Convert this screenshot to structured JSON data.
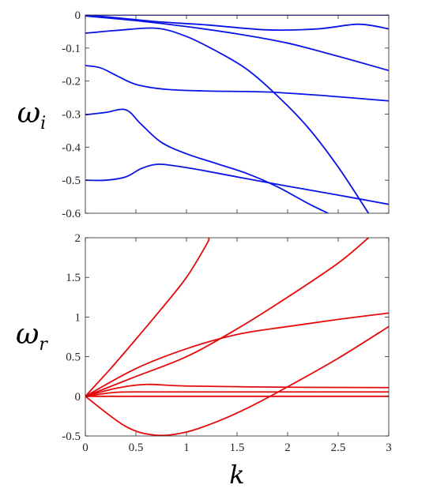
{
  "chart_data": [
    {
      "type": "line",
      "title": "",
      "xlabel": "",
      "ylabel_main": "ω",
      "ylabel_sub": "i",
      "xlim": [
        0,
        3
      ],
      "ylim": [
        -0.6,
        0
      ],
      "x_ticks": [
        0,
        0.5,
        1,
        1.5,
        2,
        2.5,
        3
      ],
      "x_tick_labels": [
        "",
        "",
        "",
        "",
        "",
        "",
        ""
      ],
      "y_ticks": [
        0,
        -0.1,
        -0.2,
        -0.3,
        -0.4,
        -0.5,
        -0.6
      ],
      "y_tick_labels": [
        "0",
        "-0.1",
        "-0.2",
        "-0.3",
        "-0.4",
        "-0.5",
        "-0.6"
      ],
      "color": "#0a14e6",
      "series": [
        {
          "x": [
            0,
            0.5,
            1,
            1.5,
            2,
            2.5,
            3
          ],
          "y": [
            0,
            0,
            0,
            0,
            0,
            0,
            0
          ]
        },
        {
          "x": [
            0,
            0.3,
            0.7,
            1.2,
            1.8,
            2.3,
            2.7,
            3
          ],
          "y": [
            0,
            -0.008,
            -0.02,
            -0.03,
            -0.045,
            -0.042,
            -0.028,
            -0.042
          ]
        },
        {
          "x": [
            0,
            0.5,
            1,
            1.5,
            2,
            2.5,
            3
          ],
          "y": [
            -0.003,
            -0.017,
            -0.035,
            -0.057,
            -0.085,
            -0.125,
            -0.168
          ]
        },
        {
          "x": [
            0,
            0.3,
            0.7,
            1,
            1.3,
            1.6,
            1.9,
            2.2,
            2.5,
            2.8
          ],
          "y": [
            -0.055,
            -0.047,
            -0.04,
            -0.065,
            -0.11,
            -0.165,
            -0.245,
            -0.34,
            -0.46,
            -0.6
          ]
        },
        {
          "x": [
            0,
            0.15,
            0.3,
            0.5,
            0.8,
            1.2,
            1.8,
            2.4,
            3
          ],
          "y": [
            -0.153,
            -0.16,
            -0.182,
            -0.21,
            -0.225,
            -0.23,
            -0.233,
            -0.245,
            -0.26
          ]
        },
        {
          "x": [
            0,
            0.2,
            0.4,
            0.55,
            0.75,
            1,
            1.3,
            1.6,
            1.9,
            2.2,
            2.4
          ],
          "y": [
            -0.302,
            -0.295,
            -0.287,
            -0.33,
            -0.385,
            -0.42,
            -0.45,
            -0.48,
            -0.52,
            -0.57,
            -0.6
          ]
        },
        {
          "x": [
            0,
            0.2,
            0.4,
            0.55,
            0.7,
            0.85,
            1.1,
            1.5,
            2,
            2.5,
            3
          ],
          "y": [
            -0.5,
            -0.5,
            -0.49,
            -0.465,
            -0.452,
            -0.455,
            -0.467,
            -0.49,
            -0.518,
            -0.545,
            -0.573
          ]
        }
      ]
    },
    {
      "type": "line",
      "title": "",
      "xlabel": "k",
      "ylabel_main": "ω",
      "ylabel_sub": "r",
      "xlim": [
        0,
        3
      ],
      "ylim": [
        -0.5,
        2
      ],
      "x_ticks": [
        0,
        0.5,
        1,
        1.5,
        2,
        2.5,
        3
      ],
      "x_tick_labels": [
        "0",
        "0.5",
        "1",
        "1.5",
        "2",
        "2.5",
        "3"
      ],
      "y_ticks": [
        -0.5,
        0,
        0.5,
        1,
        1.5,
        2
      ],
      "y_tick_labels": [
        "-0.5",
        "0",
        "0.5",
        "1",
        "1.5",
        "2"
      ],
      "color": "#e60a0a",
      "series": [
        {
          "x": [
            0,
            0.25,
            0.5,
            0.75,
            1,
            1.2,
            1.22
          ],
          "y": [
            0,
            0.35,
            0.72,
            1.1,
            1.5,
            1.92,
            2.0
          ]
        },
        {
          "x": [
            0,
            0.5,
            1,
            1.5,
            2,
            2.5,
            2.8
          ],
          "y": [
            0,
            0.25,
            0.5,
            0.85,
            1.25,
            1.68,
            2.0
          ]
        },
        {
          "x": [
            0,
            0.5,
            1,
            1.5,
            2,
            2.5,
            3
          ],
          "y": [
            0,
            0.35,
            0.6,
            0.78,
            0.88,
            0.97,
            1.05
          ]
        },
        {
          "x": [
            0,
            0.4,
            0.7,
            1,
            1.3,
            1.6,
            2,
            2.5,
            3
          ],
          "y": [
            0,
            -0.38,
            -0.49,
            -0.45,
            -0.32,
            -0.15,
            0.12,
            0.48,
            0.88
          ]
        },
        {
          "x": [
            0,
            0.3,
            0.6,
            1,
            2,
            3
          ],
          "y": [
            0,
            0.1,
            0.15,
            0.13,
            0.115,
            0.11
          ]
        },
        {
          "x": [
            0,
            0.3,
            0.6,
            1,
            2,
            3
          ],
          "y": [
            0,
            0.05,
            0.055,
            0.055,
            0.055,
            0.055
          ]
        },
        {
          "x": [
            0,
            1,
            2,
            3
          ],
          "y": [
            0,
            0,
            0,
            0
          ]
        }
      ]
    }
  ]
}
